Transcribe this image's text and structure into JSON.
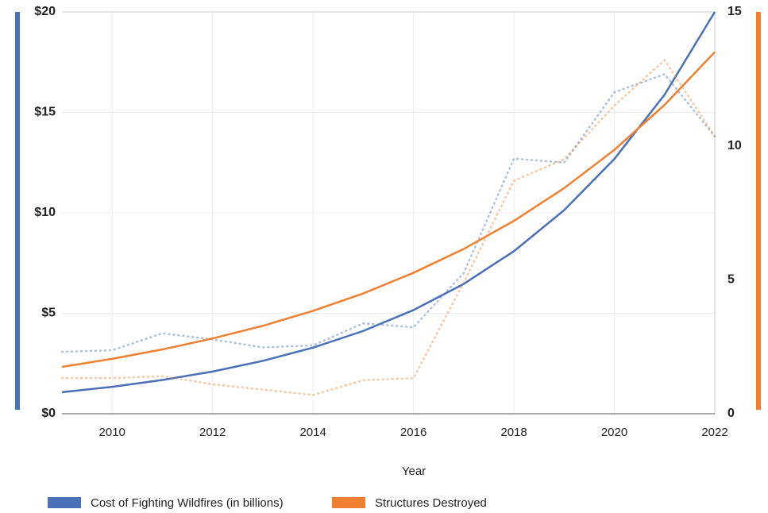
{
  "chart_data": {
    "type": "line",
    "x_label": "Year",
    "x": [
      2009,
      2010,
      2011,
      2012,
      2013,
      2014,
      2015,
      2016,
      2017,
      2018,
      2019,
      2020,
      2021,
      2022
    ],
    "xlim": [
      2009,
      2022
    ],
    "xticks": [
      2010,
      2012,
      2014,
      2016,
      2018,
      2020,
      2022
    ],
    "ylim": [
      0,
      20
    ],
    "yticks": [
      {
        "value": 0,
        "label": "$0"
      },
      {
        "value": 5,
        "label": "$5"
      },
      {
        "value": 10,
        "label": "$10"
      },
      {
        "value": 15,
        "label": "$15"
      },
      {
        "value": 20,
        "label": "$20"
      }
    ],
    "y2lim": [
      0,
      15
    ],
    "y2ticks": [
      0,
      5,
      10,
      15
    ],
    "grid": true,
    "legend": "bottom",
    "series": [
      {
        "name": "Cost of Fighting Wildfires (in billions)",
        "color": "#4a70b8",
        "axis": "y",
        "values": [
          3.08,
          3.16,
          4.0,
          3.7,
          3.3,
          3.4,
          4.5,
          4.3,
          7.0,
          12.7,
          12.5,
          16.0,
          16.9,
          13.8
        ],
        "trend_values": [
          1.07,
          1.34,
          1.68,
          2.1,
          2.63,
          3.29,
          4.12,
          5.16,
          6.46,
          8.09,
          10.13,
          12.68,
          15.88,
          20.0
        ]
      },
      {
        "name": "Structures Destroyed",
        "color": "#f0802f",
        "axis": "y2",
        "values": [
          1.33,
          1.33,
          1.4,
          1.1,
          0.9,
          0.7,
          1.25,
          1.33,
          4.9,
          8.7,
          9.5,
          11.5,
          13.2,
          10.35
        ],
        "trend_values": [
          1.75,
          2.05,
          2.4,
          2.81,
          3.28,
          3.84,
          4.49,
          5.26,
          6.15,
          7.2,
          8.42,
          9.85,
          11.53,
          13.5
        ]
      }
    ]
  }
}
